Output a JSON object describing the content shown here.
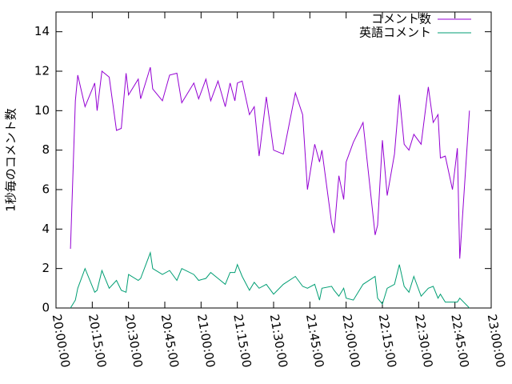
{
  "chart_data": {
    "type": "line",
    "y_label": "1秒毎のコメント数",
    "x": [
      "20:06:00",
      "20:08:00",
      "20:09:00",
      "20:12:00",
      "20:16:00",
      "20:17:00",
      "20:19:00",
      "20:22:00",
      "20:25:00",
      "20:27:00",
      "20:29:00",
      "20:30:00",
      "20:34:00",
      "20:35:00",
      "20:39:00",
      "20:40:00",
      "20:44:00",
      "20:47:00",
      "20:50:00",
      "20:52:00",
      "20:57:00",
      "20:59:00",
      "21:02:00",
      "21:04:00",
      "21:07:00",
      "21:10:00",
      "21:12:00",
      "21:14:00",
      "21:15:00",
      "21:17:00",
      "21:20:00",
      "21:22:00",
      "21:24:00",
      "21:27:00",
      "21:30:00",
      "21:34:00",
      "21:39:00",
      "21:42:00",
      "21:44:00",
      "21:47:00",
      "21:49:00",
      "21:50:00",
      "21:54:00",
      "21:55:00",
      "21:57:00",
      "21:59:00",
      "22:00:00",
      "22:03:00",
      "22:07:00",
      "22:12:00",
      "22:13:00",
      "22:15:00",
      "22:17:00",
      "22:20:00",
      "22:22:00",
      "22:24:00",
      "22:26:00",
      "22:28:00",
      "22:31:00",
      "22:34:00",
      "22:36:00",
      "22:38:00",
      "22:39:00",
      "22:41:00",
      "22:44:00",
      "22:46:00",
      "22:47:00",
      "22:51:00"
    ],
    "series": [
      {
        "name": "コメント数",
        "color": "#9400d3",
        "values": [
          3.0,
          10.5,
          11.8,
          10.2,
          11.4,
          10.0,
          12.0,
          11.7,
          9.0,
          9.1,
          11.9,
          10.8,
          11.6,
          10.6,
          12.2,
          11.1,
          10.5,
          11.8,
          11.9,
          10.4,
          11.4,
          10.6,
          11.6,
          10.5,
          11.5,
          10.2,
          11.4,
          10.5,
          11.4,
          11.5,
          9.8,
          10.2,
          7.7,
          10.7,
          8.0,
          7.8,
          10.9,
          9.8,
          6.0,
          8.3,
          7.4,
          8.0,
          4.3,
          3.8,
          6.7,
          5.5,
          7.4,
          8.4,
          9.4,
          3.7,
          4.2,
          8.5,
          5.7,
          7.8,
          10.8,
          8.3,
          8.0,
          8.8,
          8.3,
          11.2,
          9.4,
          9.8,
          7.6,
          7.7,
          6.0,
          8.1,
          2.5,
          10.0
        ]
      },
      {
        "name": "英語コメント",
        "color": "#009e73",
        "values": [
          0.0,
          0.4,
          1.0,
          2.0,
          0.8,
          0.9,
          1.9,
          1.0,
          1.4,
          0.9,
          0.8,
          1.7,
          1.4,
          1.5,
          2.8,
          2.0,
          1.7,
          1.9,
          1.4,
          2.0,
          1.7,
          1.4,
          1.5,
          1.8,
          1.5,
          1.2,
          1.8,
          1.8,
          2.2,
          1.6,
          0.9,
          1.3,
          1.0,
          1.2,
          0.7,
          1.2,
          1.6,
          1.1,
          1.0,
          1.2,
          0.4,
          1.0,
          1.1,
          0.9,
          0.6,
          1.0,
          0.5,
          0.4,
          1.2,
          1.6,
          0.5,
          0.2,
          1.0,
          1.2,
          2.2,
          1.1,
          0.8,
          1.6,
          0.6,
          1.0,
          1.1,
          0.5,
          0.7,
          0.3,
          0.3,
          0.3,
          0.5,
          0.0
        ]
      }
    ],
    "xlim": [
      "20:00:00",
      "23:00:00"
    ],
    "xticks": [
      "20:00:00",
      "20:15:00",
      "20:30:00",
      "20:45:00",
      "21:00:00",
      "21:15:00",
      "21:30:00",
      "21:45:00",
      "22:00:00",
      "22:15:00",
      "22:30:00",
      "22:45:00",
      "23:00:00"
    ],
    "ylim": [
      0,
      15
    ],
    "yticks": [
      0,
      2,
      4,
      6,
      8,
      10,
      12,
      14
    ],
    "legend": "top-right"
  }
}
